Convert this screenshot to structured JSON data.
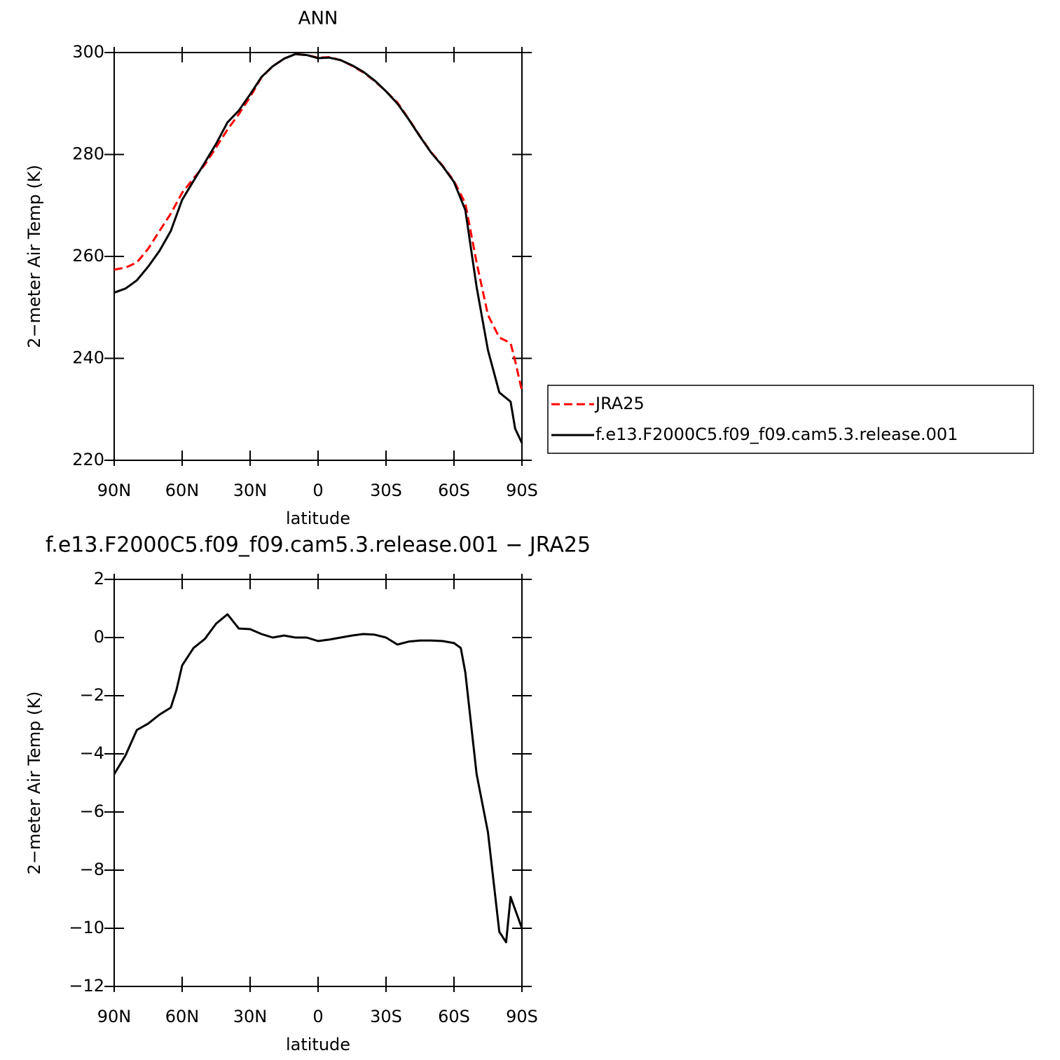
{
  "chart_data": [
    {
      "type": "line",
      "title": "ANN",
      "xlabel": "latitude",
      "ylabel": "2−meter Air Temp (K)",
      "x": [
        90,
        85,
        80,
        75,
        70,
        65,
        60,
        55,
        50,
        45,
        40,
        35,
        30,
        25,
        20,
        15,
        10,
        5,
        0,
        -5,
        -10,
        -15,
        -20,
        -25,
        -30,
        -35,
        -40,
        -45,
        -50,
        -55,
        -60,
        -65,
        -70,
        -75,
        -80,
        -85,
        -87,
        -90
      ],
      "series": [
        {
          "name": "JRA25",
          "color": "#ff0000",
          "style": "dashed",
          "values": [
            257.4,
            257.8,
            258.8,
            261.5,
            265.0,
            268.4,
            272.5,
            275.3,
            278.0,
            281.4,
            284.9,
            287.9,
            291.3,
            295.1,
            297.3,
            298.8,
            299.7,
            299.5,
            299.0,
            299.1,
            298.5,
            297.4,
            296.1,
            294.4,
            292.4,
            290.2,
            287.0,
            283.6,
            280.4,
            277.8,
            274.8,
            270.4,
            258.8,
            248.5,
            244.1,
            243.0,
            239.5,
            233.6
          ]
        },
        {
          "name": "f.e13.F2000C5.f09_f09.cam5.3.release.001",
          "color": "#000000",
          "style": "solid",
          "values": [
            252.9,
            253.7,
            255.3,
            258.0,
            261.1,
            265.0,
            271.1,
            274.8,
            278.4,
            282.1,
            286.3,
            288.6,
            291.8,
            295.2,
            297.3,
            298.8,
            299.7,
            299.5,
            298.9,
            299.0,
            298.5,
            297.5,
            296.2,
            294.5,
            292.4,
            290.0,
            286.9,
            283.5,
            280.3,
            277.7,
            274.6,
            269.1,
            254.0,
            241.6,
            233.3,
            231.5,
            226.2,
            223.4
          ]
        }
      ],
      "xlim": [
        90,
        -90
      ],
      "xticks": [
        {
          "value": 90,
          "label": "90N"
        },
        {
          "value": 60,
          "label": "60N"
        },
        {
          "value": 30,
          "label": "30N"
        },
        0,
        {
          "value": -30,
          "label": "30S"
        },
        {
          "value": -60,
          "label": "60S"
        },
        {
          "value": -90,
          "label": "90S"
        }
      ],
      "ylim": [
        220,
        300
      ],
      "yticks": [
        220,
        240,
        260,
        280,
        300
      ]
    },
    {
      "type": "line",
      "title": "f.e13.F2000C5.f09_f09.cam5.3.release.001 − JRA25",
      "xlabel": "latitude",
      "ylabel": "2−meter Air Temp (K)",
      "x": [
        90,
        85,
        80,
        75,
        70,
        65,
        62.5,
        60,
        55,
        50,
        45,
        40,
        35,
        30,
        25,
        20,
        15,
        10,
        5,
        0,
        -5,
        -10,
        -15,
        -20,
        -25,
        -30,
        -35,
        -40,
        -45,
        -50,
        -55,
        -60,
        -63,
        -65,
        -70,
        -75,
        -80,
        -83,
        -85,
        -90
      ],
      "color": "#000000",
      "values": [
        -4.7,
        -4.05,
        -3.18,
        -2.96,
        -2.65,
        -2.41,
        -1.8,
        -0.96,
        -0.36,
        -0.05,
        0.48,
        0.8,
        0.31,
        0.29,
        0.12,
        0.0,
        0.07,
        0.0,
        0.0,
        -0.12,
        -0.07,
        0.0,
        0.07,
        0.12,
        0.1,
        0.0,
        -0.24,
        -0.14,
        -0.1,
        -0.1,
        -0.12,
        -0.19,
        -0.36,
        -1.2,
        -4.7,
        -6.7,
        -10.12,
        -10.48,
        -8.92,
        -10.0
      ],
      "xlim": [
        90,
        -90
      ],
      "xticks": [
        {
          "value": 90,
          "label": "90N"
        },
        {
          "value": 60,
          "label": "60N"
        },
        {
          "value": 30,
          "label": "30N"
        },
        0,
        {
          "value": -30,
          "label": "30S"
        },
        {
          "value": -60,
          "label": "60S"
        },
        {
          "value": -90,
          "label": "90S"
        }
      ],
      "ylim": [
        -12,
        2
      ],
      "yticks": [
        {
          "value": -12,
          "label": "−12"
        },
        {
          "value": -10,
          "label": "−10"
        },
        {
          "value": -8,
          "label": "−8"
        },
        {
          "value": -6,
          "label": "−6"
        },
        {
          "value": -4,
          "label": "−4"
        },
        {
          "value": -2,
          "label": "−2"
        },
        0,
        2
      ]
    }
  ]
}
